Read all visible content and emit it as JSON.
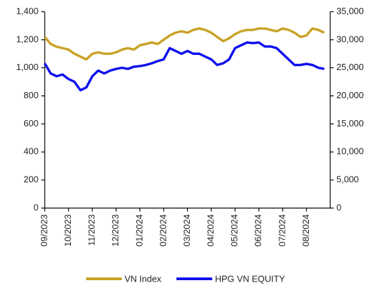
{
  "chart_data": {
    "type": "line",
    "categories": [
      "09/2023",
      null,
      null,
      null,
      "10/2023",
      null,
      null,
      null,
      "11/2023",
      null,
      null,
      null,
      "12/2023",
      null,
      null,
      null,
      "01/2024",
      null,
      null,
      null,
      "02/2024",
      null,
      null,
      null,
      "03/2024",
      null,
      null,
      null,
      "04/2024",
      null,
      null,
      null,
      "05/2024",
      null,
      null,
      null,
      "06/2024",
      null,
      null,
      null,
      "07/2024",
      null,
      null,
      null,
      "08/2024",
      null,
      null,
      null
    ],
    "series": [
      {
        "name": "VN Index",
        "color": "#c9a227",
        "values": [
          1220,
          1170,
          1150,
          1140,
          1130,
          1100,
          1080,
          1060,
          1100,
          1110,
          1100,
          1100,
          1110,
          1130,
          1140,
          1130,
          1160,
          1170,
          1180,
          1170,
          1200,
          1230,
          1250,
          1260,
          1250,
          1270,
          1280,
          1270,
          1250,
          1220,
          1190,
          1210,
          1240,
          1260,
          1270,
          1270,
          1280,
          1280,
          1270,
          1260,
          1280,
          1270,
          1250,
          1220,
          1230,
          1280,
          1270,
          1250
        ]
      },
      {
        "name": "HPG VN EQUITY",
        "color": "#1010ee",
        "axis": "y2",
        "values": [
          25800,
          24000,
          23500,
          23800,
          23000,
          22500,
          21000,
          21500,
          23500,
          24500,
          24000,
          24500,
          24800,
          25000,
          24800,
          25200,
          25300,
          25500,
          25800,
          26200,
          26500,
          28500,
          28000,
          27500,
          28000,
          27500,
          27500,
          27000,
          26500,
          25500,
          25800,
          26500,
          28500,
          29000,
          29500,
          29400,
          29500,
          28800,
          28800,
          28500,
          27500,
          26500,
          25500,
          25500,
          25700,
          25500,
          25000,
          24800
        ]
      }
    ],
    "ylim": [
      0,
      1400
    ],
    "yticks": [
      0,
      200,
      400,
      600,
      800,
      {
        "value": 1000,
        "label": "1,000"
      },
      {
        "value": 1200,
        "label": "1,200"
      },
      {
        "value": 1400,
        "label": "1,400"
      }
    ],
    "y2lim": [
      0,
      35000
    ],
    "y2ticks": [
      0,
      {
        "value": 5000,
        "label": "5,000"
      },
      {
        "value": 10000,
        "label": "10,000"
      },
      {
        "value": 15000,
        "label": "15,000"
      },
      {
        "value": 20000,
        "label": "20,000"
      },
      {
        "value": 25000,
        "label": "25,000"
      },
      {
        "value": 30000,
        "label": "30,000"
      },
      {
        "value": 35000,
        "label": "35,000"
      }
    ],
    "legend": "bottom"
  }
}
